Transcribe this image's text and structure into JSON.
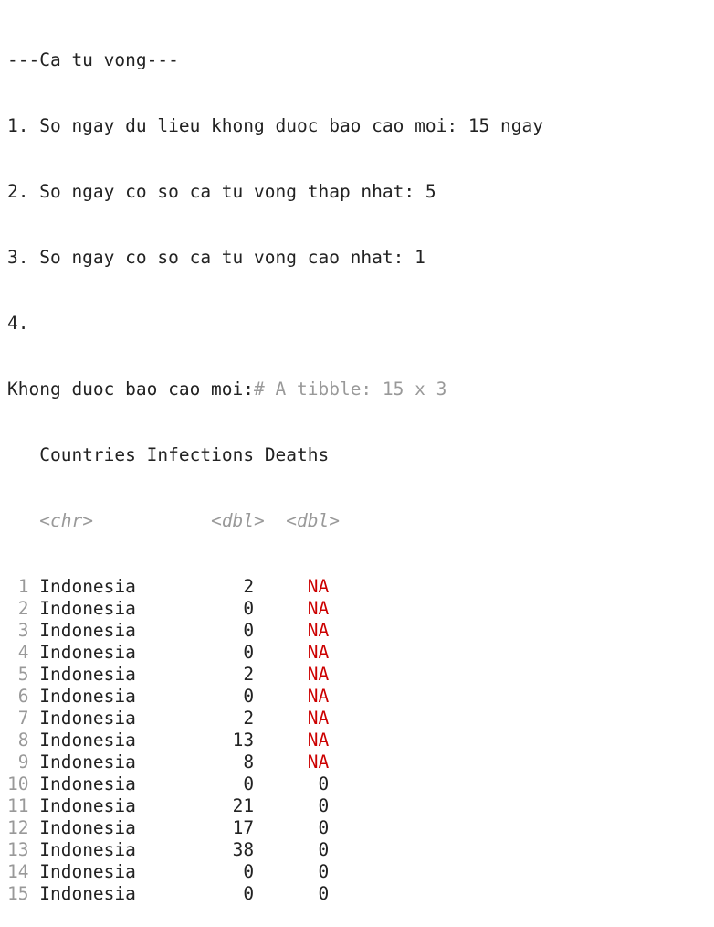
{
  "console": {
    "header": "---Ca tu vong---",
    "items": [
      "1. So ngay du lieu khong duoc bao cao moi: 15 ngay",
      "2. So ngay co so ca tu vong thap nhat: 5",
      "3. So ngay co so ca tu vong cao nhat: 1",
      "4."
    ],
    "tibble_prefix": "Khong duoc bao cao moi:",
    "tibble_comment": "# A tibble: 15 x 3",
    "columns": [
      "Countries",
      "Infections",
      "Deaths"
    ],
    "column_types": [
      "<chr>",
      "<dbl>",
      "<dbl>"
    ],
    "rows": [
      {
        "index": "1",
        "country": "Indonesia",
        "infections": "2",
        "deaths": "NA"
      },
      {
        "index": "2",
        "country": "Indonesia",
        "infections": "0",
        "deaths": "NA"
      },
      {
        "index": "3",
        "country": "Indonesia",
        "infections": "0",
        "deaths": "NA"
      },
      {
        "index": "4",
        "country": "Indonesia",
        "infections": "0",
        "deaths": "NA"
      },
      {
        "index": "5",
        "country": "Indonesia",
        "infections": "2",
        "deaths": "NA"
      },
      {
        "index": "6",
        "country": "Indonesia",
        "infections": "0",
        "deaths": "NA"
      },
      {
        "index": "7",
        "country": "Indonesia",
        "infections": "2",
        "deaths": "NA"
      },
      {
        "index": "8",
        "country": "Indonesia",
        "infections": "13",
        "deaths": "NA"
      },
      {
        "index": "9",
        "country": "Indonesia",
        "infections": "8",
        "deaths": "NA"
      },
      {
        "index": "10",
        "country": "Indonesia",
        "infections": "0",
        "deaths": "0"
      },
      {
        "index": "11",
        "country": "Indonesia",
        "infections": "21",
        "deaths": "0"
      },
      {
        "index": "12",
        "country": "Indonesia",
        "infections": "17",
        "deaths": "0"
      },
      {
        "index": "13",
        "country": "Indonesia",
        "infections": "38",
        "deaths": "0"
      },
      {
        "index": "14",
        "country": "Indonesia",
        "infections": "0",
        "deaths": "0"
      },
      {
        "index": "15",
        "country": "Indonesia",
        "infections": "0",
        "deaths": "0"
      }
    ],
    "colors": {
      "text": "#222222",
      "muted": "#999999",
      "na": "#cc0000"
    }
  }
}
